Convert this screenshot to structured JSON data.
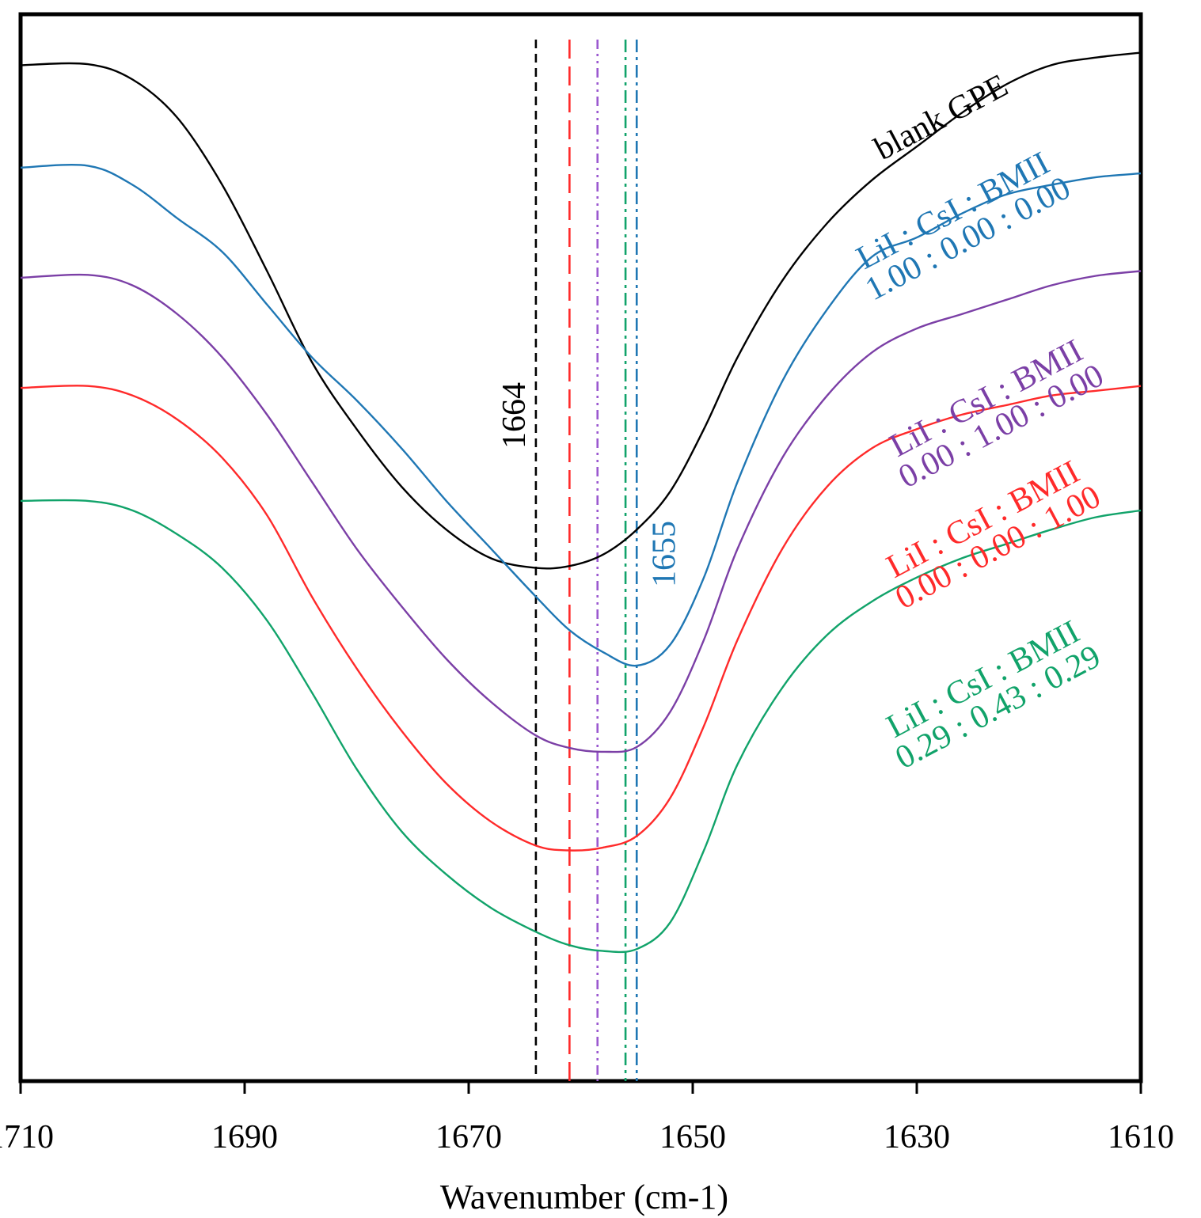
{
  "chart_data": {
    "type": "line",
    "title": "",
    "xlabel": "Wavenumber (cm-1)",
    "ylabel": "",
    "xlim": [
      1710,
      1610
    ],
    "ylim": [
      0,
      100
    ],
    "x_ticks": [
      1710,
      1690,
      1670,
      1650,
      1630,
      1610
    ],
    "x_tick_labels": [
      "1710",
      "1690",
      "1670",
      "1650",
      "1630",
      "1610"
    ],
    "grid": false,
    "legend": "none; series labelled inline at right",
    "series": [
      {
        "name": "blank GPE",
        "label_lines": [
          "blank GPE"
        ],
        "color": "#000000",
        "x": [
          1710,
          1704,
          1700,
          1696,
          1692,
          1688,
          1684,
          1680,
          1676,
          1672,
          1668,
          1664,
          1661,
          1658,
          1655,
          1652,
          1649,
          1646,
          1642,
          1638,
          1634,
          1630,
          1626,
          1622,
          1618,
          1614,
          1610
        ],
        "y": [
          96.5,
          96.6,
          95.0,
          91.0,
          84.0,
          75.0,
          65.5,
          58.5,
          52.5,
          48.0,
          45.0,
          44.0,
          44.2,
          45.4,
          48.0,
          52.0,
          58.5,
          66.0,
          74.0,
          80.0,
          84.5,
          88.0,
          91.5,
          94.5,
          96.5,
          97.3,
          97.8
        ]
      },
      {
        "name": "LiI : CsI : BMII 1.00 : 0.00 : 0.00",
        "label_lines": [
          "LiI : CsI : BMII",
          "1.00 : 0.00 : 0.00"
        ],
        "color": "#1f77b4",
        "x": [
          1710,
          1704,
          1700,
          1696,
          1692,
          1688,
          1684,
          1680,
          1676,
          1672,
          1668,
          1664,
          1661,
          1658,
          1655,
          1652,
          1649,
          1646,
          1642,
          1638,
          1634,
          1630,
          1626,
          1622,
          1618,
          1614,
          1610
        ],
        "y": [
          85.8,
          86.0,
          84.0,
          80.5,
          77.0,
          71.5,
          66.0,
          61.5,
          56.5,
          51.0,
          46.0,
          41.0,
          37.5,
          35.2,
          33.8,
          36.0,
          43.0,
          53.0,
          63.5,
          71.0,
          76.5,
          78.5,
          81.0,
          83.0,
          84.0,
          84.8,
          85.2
        ]
      },
      {
        "name": "LiI : CsI : BMII 0.00 : 1.00 : 0.00",
        "label_lines": [
          "LiI : CsI : BMII",
          "0.00 : 1.00 : 0.00"
        ],
        "color": "#7b3fa6",
        "x": [
          1710,
          1704,
          1700,
          1696,
          1692,
          1688,
          1684,
          1680,
          1676,
          1672,
          1668,
          1664,
          1661,
          1658,
          1655,
          1652,
          1649,
          1646,
          1642,
          1638,
          1634,
          1630,
          1626,
          1622,
          1618,
          1614,
          1610
        ],
        "y": [
          74.3,
          74.6,
          73.5,
          70.5,
          66.0,
          60.0,
          53.0,
          46.0,
          40.0,
          34.5,
          30.0,
          26.5,
          25.2,
          24.8,
          25.3,
          29.0,
          36.5,
          46.0,
          55.5,
          62.0,
          66.5,
          69.0,
          70.5,
          72.0,
          73.5,
          74.5,
          75.0
        ]
      },
      {
        "name": "LiI : CsI : BMII 0.00 : 0.00 : 1.00",
        "label_lines": [
          "LiI : CsI : BMII",
          "0.00 : 0.00 : 1.00"
        ],
        "color": "#ff2a2a",
        "x": [
          1710,
          1704,
          1700,
          1696,
          1692,
          1688,
          1684,
          1680,
          1676,
          1672,
          1668,
          1664,
          1661,
          1658,
          1655,
          1652,
          1649,
          1646,
          1642,
          1638,
          1634,
          1630,
          1626,
          1622,
          1618,
          1614,
          1610
        ],
        "y": [
          62.8,
          63.0,
          62.0,
          59.5,
          55.5,
          49.5,
          41.0,
          33.5,
          27.0,
          21.5,
          17.5,
          15.0,
          14.5,
          14.8,
          16.0,
          20.0,
          27.5,
          36.5,
          46.0,
          52.5,
          56.5,
          58.5,
          60.0,
          61.0,
          62.0,
          62.5,
          63.0
        ]
      },
      {
        "name": "LiI : CsI : BMII 0.29 : 0.43 : 0.29",
        "label_lines": [
          "LiI : CsI : BMII",
          "0.29 : 0.43 : 0.29"
        ],
        "color": "#11a36a",
        "x": [
          1710,
          1704,
          1700,
          1696,
          1692,
          1688,
          1684,
          1680,
          1676,
          1672,
          1668,
          1664,
          1661,
          1658,
          1655,
          1652,
          1649,
          1646,
          1642,
          1638,
          1634,
          1630,
          1626,
          1622,
          1618,
          1614,
          1610
        ],
        "y": [
          51.0,
          51.0,
          50.0,
          47.5,
          44.0,
          38.5,
          31.0,
          23.0,
          16.5,
          12.0,
          8.5,
          6.0,
          4.6,
          4.0,
          4.2,
          7.0,
          14.5,
          23.5,
          31.5,
          37.0,
          40.5,
          43.0,
          45.0,
          46.5,
          48.0,
          49.3,
          50.0
        ]
      }
    ],
    "reference_lines": [
      {
        "x": 1664,
        "color": "#000000",
        "style": "dashed",
        "label": "1664"
      },
      {
        "x": 1661,
        "color": "#ff2a2a",
        "style": "long-dashed",
        "label": ""
      },
      {
        "x": 1658.5,
        "color": "#9b59d0",
        "style": "dash-dot-dot",
        "label": ""
      },
      {
        "x": 1656,
        "color": "#11a36a",
        "style": "dash-dot",
        "label": ""
      },
      {
        "x": 1655,
        "color": "#1f77b4",
        "style": "dash-dot",
        "label": "1655"
      }
    ]
  }
}
